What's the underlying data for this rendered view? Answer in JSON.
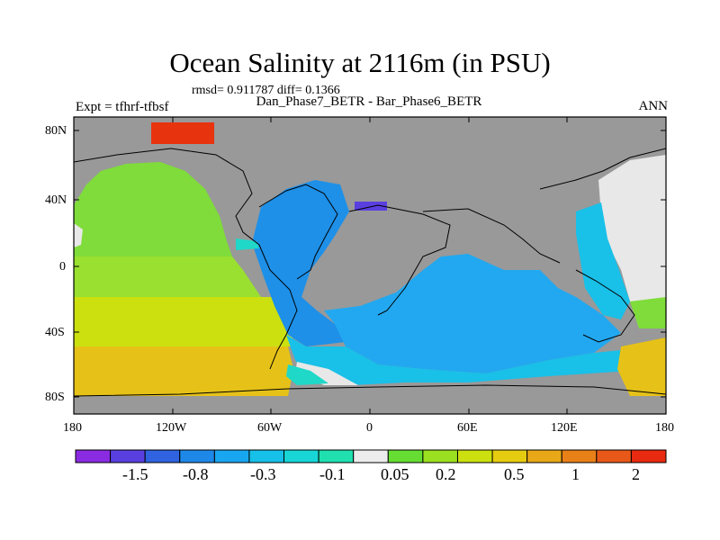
{
  "title": "Ocean Salinity at 2116m (in PSU)",
  "stats": "rmsd= 0.911787 diff= 0.1366",
  "left_label": "Expt = tfhrf-tfbsf",
  "center_label": "Dan_Phase7_BETR - Bar_Phase6_BETR",
  "right_label": "ANN",
  "lat_labels": [
    "80N",
    "40N",
    "0",
    "40S",
    "80S"
  ],
  "lon_labels": [
    "180",
    "120W",
    "60W",
    "0",
    "60E",
    "120E",
    "180"
  ],
  "colorbar": {
    "colors": [
      "#8a2be2",
      "#5a3fe0",
      "#2f63e0",
      "#1e88e8",
      "#19a6f0",
      "#17c0e8",
      "#18d6d6",
      "#20e0b0",
      "#ececec",
      "#66dd33",
      "#9ae020",
      "#cce010",
      "#e6cc10",
      "#e8a818",
      "#e88018",
      "#e85818",
      "#e82a10"
    ],
    "tick_labels": [
      "-1.5",
      "-0.8",
      "-0.3",
      "-0.1",
      "0.05",
      "0.2",
      "0.5",
      "1",
      "2"
    ]
  },
  "colors": {
    "land": "#999999",
    "fill_value": "#e8e8e8",
    "pacific_north": "#7fdc3a",
    "pacific_mid": "#99e030",
    "pacific_south": "#cce010",
    "pacific_far_south": "#e6c218",
    "atlantic": "#1e90e8",
    "indian": "#22a8f0",
    "southern": "#19c0e8",
    "teal": "#20d8c8",
    "mediterranean": "#5a3fe0",
    "arctic": "#e8330f"
  }
}
